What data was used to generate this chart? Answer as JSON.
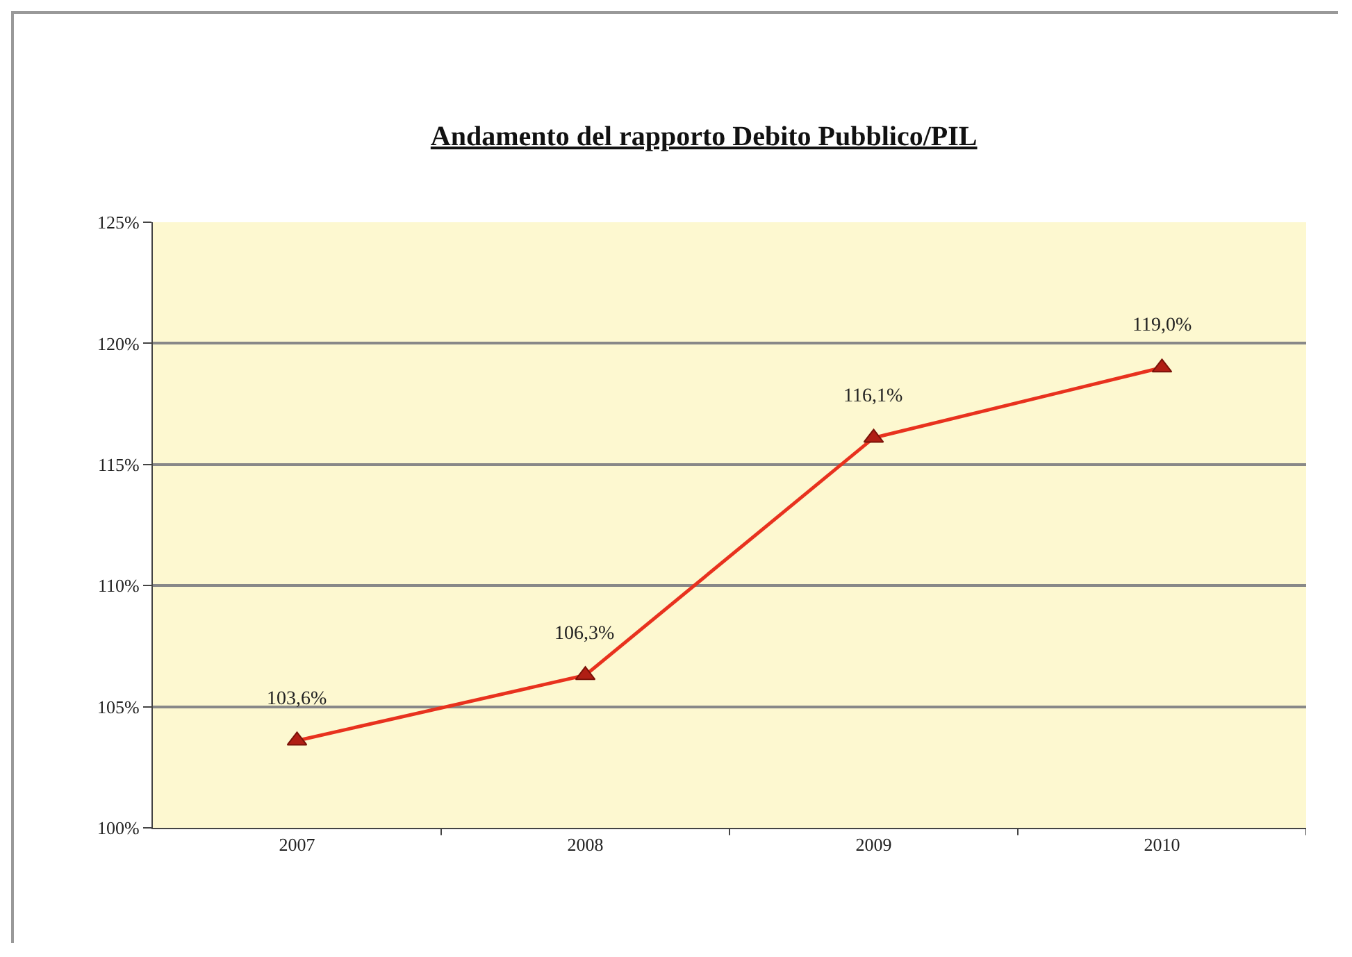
{
  "chart_data": {
    "type": "line",
    "title": "Andamento del rapporto Debito Pubblico/PIL",
    "categories": [
      "2007",
      "2008",
      "2009",
      "2010"
    ],
    "series": [
      {
        "color": "#e8321e",
        "values": [
          103.6,
          106.3,
          116.1,
          119.0
        ],
        "value_labels": [
          "103,6%",
          "106,3%",
          "116,1%",
          "119,0%"
        ]
      }
    ],
    "ylim": [
      100,
      125
    ],
    "yticks": [
      {
        "value": 100,
        "label": "100%"
      },
      {
        "value": 105,
        "label": "105%"
      },
      {
        "value": 110,
        "label": "110%"
      },
      {
        "value": 115,
        "label": "115%"
      },
      {
        "value": 120,
        "label": "120%"
      },
      {
        "value": 125,
        "label": "125%"
      }
    ],
    "grid": "y",
    "marker": "triangle",
    "line_style": "solid"
  }
}
